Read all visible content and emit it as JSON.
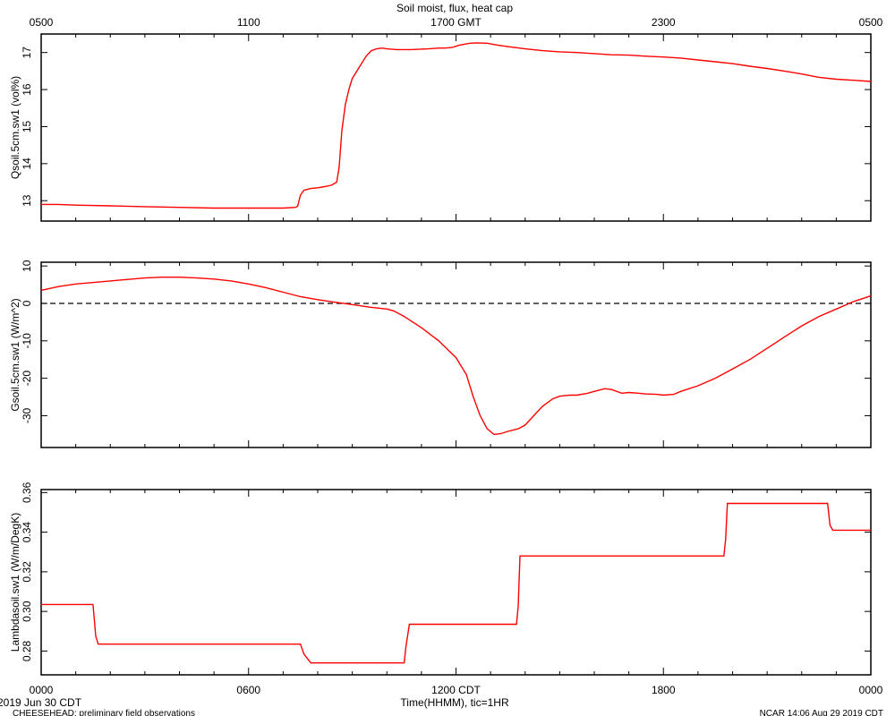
{
  "title": "Soil moist, flux, heat cap",
  "footer": {
    "date": "2019 Jun 30 CDT",
    "project": "CHEESEHEAD: preliminary field observations",
    "stamp": "NCAR 14:06 Aug 29 2019 CDT"
  },
  "x_axis": {
    "label": "Time(HHMM), tic=1HR",
    "bottom_ticks": [
      "0000",
      "0600",
      "1200 CDT",
      "1800",
      "0000"
    ],
    "top_ticks": [
      "0500",
      "1100",
      "1700 GMT",
      "2300",
      "0500"
    ],
    "range_hours": [
      0,
      24
    ]
  },
  "chart_data": [
    {
      "type": "line",
      "ylabel": "Qsoil.5cm.sw1 (vol%)",
      "ylim": [
        12.45,
        17.5
      ],
      "yticks": [
        13,
        14,
        15,
        16,
        17
      ],
      "grid": false,
      "series": [
        {
          "color": "#ff0000",
          "x": [
            0,
            0.5,
            1,
            2,
            3,
            4,
            5,
            6,
            7,
            7.35,
            7.42,
            7.5,
            7.6,
            7.8,
            8.0,
            8.2,
            8.4,
            8.55,
            8.62,
            8.7,
            8.8,
            8.9,
            9.0,
            9.2,
            9.4,
            9.55,
            9.7,
            9.85,
            10.0,
            10.3,
            10.7,
            11.2,
            11.5,
            11.7,
            11.9,
            12.1,
            12.4,
            12.6,
            12.9,
            13.2,
            13.5,
            14,
            14.5,
            15,
            15.5,
            16,
            16.5,
            17,
            17.5,
            18,
            18.5,
            19,
            19.5,
            20,
            20.5,
            21,
            21.5,
            22,
            22.5,
            23,
            23.5,
            24
          ],
          "y": [
            12.9,
            12.9,
            12.88,
            12.86,
            12.84,
            12.82,
            12.8,
            12.8,
            12.8,
            12.82,
            12.85,
            13.15,
            13.28,
            13.33,
            13.35,
            13.38,
            13.42,
            13.5,
            13.9,
            14.9,
            15.6,
            16.0,
            16.3,
            16.6,
            16.9,
            17.05,
            17.1,
            17.12,
            17.1,
            17.08,
            17.08,
            17.1,
            17.12,
            17.12,
            17.14,
            17.2,
            17.25,
            17.26,
            17.25,
            17.2,
            17.16,
            17.1,
            17.05,
            17.02,
            17.0,
            16.97,
            16.94,
            16.93,
            16.9,
            16.88,
            16.85,
            16.8,
            16.75,
            16.7,
            16.63,
            16.57,
            16.5,
            16.42,
            16.33,
            16.28,
            16.25,
            16.22
          ]
        }
      ]
    },
    {
      "type": "line",
      "ylabel": "Gsoil.5cm.sw1 (W/m^2)",
      "ylim": [
        -38.5,
        11
      ],
      "yticks": [
        10,
        0,
        -10,
        -20,
        -30
      ],
      "reference_line": 0,
      "grid": false,
      "series": [
        {
          "color": "#ff0000",
          "x": [
            0,
            0.5,
            1,
            2,
            3,
            3.5,
            4,
            4.5,
            5,
            5.5,
            6,
            6.5,
            7,
            7.5,
            8,
            8.5,
            9,
            9.5,
            10,
            10.2,
            10.5,
            11,
            11.5,
            12,
            12.3,
            12.5,
            12.7,
            12.9,
            13.1,
            13.3,
            13.5,
            13.8,
            14,
            14.3,
            14.5,
            14.8,
            15,
            15.3,
            15.5,
            15.8,
            16,
            16.3,
            16.5,
            16.8,
            17,
            17.3,
            17.5,
            17.8,
            18,
            18.3,
            18.5,
            19,
            19.5,
            20,
            20.5,
            21,
            21.5,
            22,
            22.5,
            23,
            23.5,
            24
          ],
          "y": [
            3.5,
            4.5,
            5.2,
            6.0,
            6.8,
            7.0,
            7.0,
            6.8,
            6.5,
            6.0,
            5.2,
            4.2,
            3.0,
            1.8,
            1.0,
            0.3,
            -0.3,
            -1.0,
            -1.5,
            -2.0,
            -3.5,
            -6.5,
            -10.0,
            -14.5,
            -19.0,
            -25.0,
            -30.0,
            -33.5,
            -35.0,
            -34.8,
            -34.2,
            -33.5,
            -32.5,
            -29.5,
            -27.5,
            -25.5,
            -24.8,
            -24.5,
            -24.5,
            -24.0,
            -23.5,
            -22.8,
            -23.0,
            -24.0,
            -23.8,
            -24.0,
            -24.2,
            -24.3,
            -24.5,
            -24.3,
            -23.5,
            -22.0,
            -20.0,
            -17.5,
            -15.0,
            -12.0,
            -9.0,
            -6.0,
            -3.5,
            -1.5,
            0.5,
            2.0
          ]
        }
      ]
    },
    {
      "type": "line",
      "ylabel": "Lambdasoil.sw1 (W/m/DegK)",
      "ylim": [
        0.268,
        0.3615
      ],
      "yticks": [
        0.28,
        0.3,
        0.32,
        0.34,
        0.36
      ],
      "grid": false,
      "series": [
        {
          "color": "#ff0000",
          "x": [
            0,
            1.5,
            1.58,
            1.65,
            7.5,
            7.6,
            7.8,
            10.5,
            10.55,
            10.65,
            13.75,
            13.8,
            13.85,
            19.75,
            19.8,
            19.85,
            22.75,
            22.82,
            22.9,
            24
          ],
          "y": [
            0.3035,
            0.3035,
            0.2875,
            0.2835,
            0.2835,
            0.2785,
            0.274,
            0.274,
            0.282,
            0.2935,
            0.2935,
            0.3025,
            0.328,
            0.328,
            0.3365,
            0.3545,
            0.3545,
            0.3435,
            0.341,
            0.341
          ]
        }
      ]
    }
  ]
}
